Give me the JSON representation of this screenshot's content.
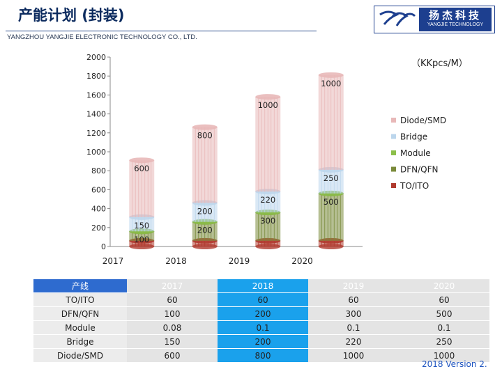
{
  "header": {
    "title": "产能计划 (封装)",
    "company": "YANGZHOU YANGJIE ELECTRONIC TECHNOLOGY CO., LTD.",
    "logo_cn": "扬杰科技",
    "logo_en": "YANGJIE TECHNOLOGY"
  },
  "unit_label": "（KKpcs/M）",
  "version": "2018 Version 2.",
  "colors": {
    "TO/ITO": "#b03a2e",
    "DFN/QFN": "#7a8a3a",
    "Module": "#8cbf4a",
    "Bridge": "#bcd6ec",
    "Diode/SMD": "#e8b8b8",
    "accent": "#1d3f8f"
  },
  "chart_data": {
    "type": "bar",
    "stacked": true,
    "categories": [
      "2017",
      "2018",
      "2019",
      "2020"
    ],
    "series": [
      {
        "name": "TO/ITO",
        "values": [
          60,
          60,
          60,
          60
        ]
      },
      {
        "name": "DFN/QFN",
        "values": [
          100,
          200,
          300,
          500
        ]
      },
      {
        "name": "Module",
        "values": [
          0.08,
          0.1,
          0.1,
          0.1
        ]
      },
      {
        "name": "Bridge",
        "values": [
          150,
          200,
          220,
          250
        ]
      },
      {
        "name": "Diode/SMD",
        "values": [
          600,
          800,
          1000,
          1000
        ]
      }
    ],
    "data_labels": [
      [
        "",
        "100",
        "",
        "150",
        "600"
      ],
      [
        "",
        "200",
        "",
        "200",
        "800"
      ],
      [
        "",
        "300",
        "",
        "220",
        "1000"
      ],
      [
        "",
        "500",
        "",
        "250",
        "1000"
      ]
    ],
    "yticks": [
      "0",
      "200",
      "400",
      "600",
      "800",
      "1000",
      "1200",
      "1400",
      "1600",
      "1800",
      "2000"
    ],
    "ylim": [
      0,
      2000
    ],
    "legend_order": [
      "Diode/SMD",
      "Bridge",
      "Module",
      "DFN/QFN",
      "TO/ITO"
    ],
    "legend_position": "right",
    "grid": false
  },
  "table": {
    "headers": [
      "产线",
      "2017",
      "2018",
      "2019",
      "2020"
    ],
    "rows": [
      [
        "TO/ITO",
        "60",
        "60",
        "60",
        "60"
      ],
      [
        "DFN/QFN",
        "100",
        "200",
        "300",
        "500"
      ],
      [
        "Module",
        "0.08",
        "0.1",
        "0.1",
        "0.1"
      ],
      [
        "Bridge",
        "150",
        "200",
        "220",
        "250"
      ],
      [
        "Diode/SMD",
        "600",
        "800",
        "1000",
        "1000"
      ]
    ]
  }
}
